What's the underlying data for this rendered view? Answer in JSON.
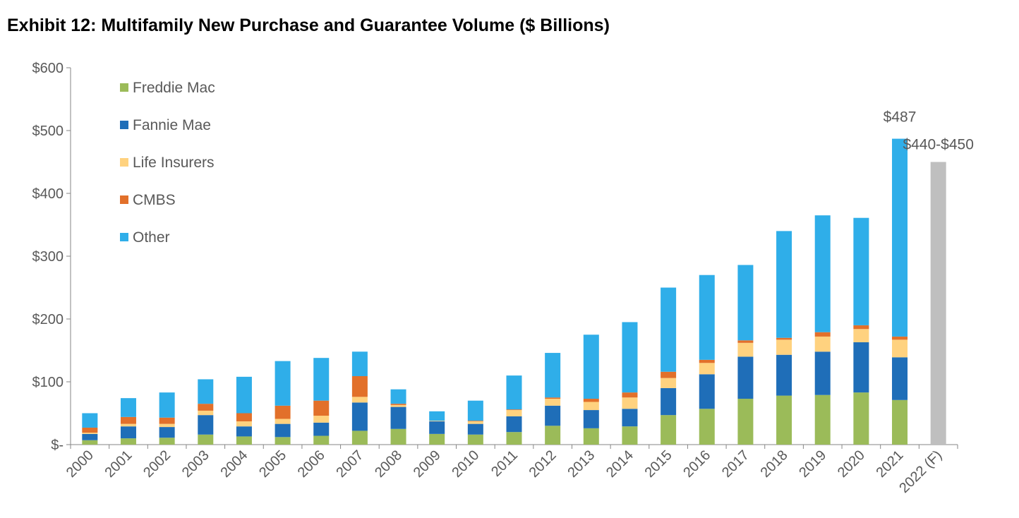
{
  "chart_data": {
    "type": "bar",
    "stacked": true,
    "title": "Exhibit 12: Multifamily New Purchase and Guarantee Volume ($ Billions)",
    "xlabel": "",
    "ylabel": "",
    "ylim": [
      0,
      600
    ],
    "yticks": [
      "$-",
      "$100",
      "$200",
      "$300",
      "$400",
      "$500",
      "$600"
    ],
    "ytick_values": [
      0,
      100,
      200,
      300,
      400,
      500,
      600
    ],
    "legend_position": "top-left",
    "categories": [
      "2000",
      "2001",
      "2002",
      "2003",
      "2004",
      "2005",
      "2006",
      "2007",
      "2008",
      "2009",
      "2010",
      "2011",
      "2012",
      "2013",
      "2014",
      "2015",
      "2016",
      "2017",
      "2018",
      "2019",
      "2020",
      "2021",
      "2022 (F)"
    ],
    "series": [
      {
        "name": "Freddie Mac",
        "color": "#9BBB59",
        "values": [
          7,
          10,
          11,
          16,
          13,
          12,
          14,
          22,
          25,
          17,
          16,
          20,
          30,
          26,
          29,
          47,
          57,
          73,
          78,
          79,
          83,
          71,
          null
        ]
      },
      {
        "name": "Fannie Mae",
        "color": "#1F6EB8",
        "values": [
          10,
          19,
          17,
          31,
          16,
          21,
          21,
          45,
          35,
          20,
          17,
          25,
          32,
          29,
          28,
          43,
          55,
          67,
          65,
          69,
          80,
          68,
          null
        ]
      },
      {
        "name": "Life Insurers",
        "color": "#FFD27F",
        "values": [
          2,
          4,
          5,
          7,
          8,
          8,
          11,
          9,
          3,
          1,
          4,
          10,
          11,
          13,
          18,
          16,
          18,
          22,
          24,
          24,
          21,
          28,
          null
        ]
      },
      {
        "name": "CMBS",
        "color": "#E2702A",
        "values": [
          8,
          11,
          10,
          11,
          13,
          21,
          24,
          33,
          2,
          0,
          1,
          1,
          2,
          5,
          8,
          10,
          5,
          4,
          3,
          7,
          6,
          5,
          null
        ]
      },
      {
        "name": "Other",
        "color": "#2FAEE9",
        "values": [
          23,
          30,
          40,
          39,
          58,
          71,
          68,
          39,
          23,
          15,
          32,
          54,
          71,
          102,
          112,
          134,
          135,
          120,
          170,
          186,
          171,
          315,
          null
        ]
      }
    ],
    "forecast": {
      "category": "2022 (F)",
      "value": 450,
      "color": "#BFBFBF",
      "label": "$440-$450"
    },
    "annotations": [
      {
        "category": "2021",
        "text": "$487"
      },
      {
        "category": "2022 (F)",
        "text": "$440-$450"
      }
    ]
  }
}
